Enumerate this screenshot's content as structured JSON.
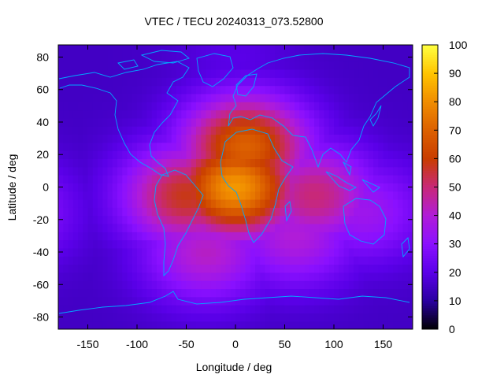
{
  "chart_data": {
    "type": "heatmap",
    "title": "VTEC / TECU 20240313_073.52800",
    "xlabel": "Longitude / deg",
    "ylabel": "Latitude / deg",
    "xlim": [
      -180,
      180
    ],
    "ylim": [
      -87.5,
      87.5
    ],
    "x_ticks": [
      -150,
      -100,
      -50,
      0,
      50,
      100,
      150
    ],
    "y_ticks": [
      80,
      60,
      40,
      20,
      0,
      -20,
      -40,
      -60,
      -80
    ],
    "colorbar": {
      "ticks": [
        0,
        10,
        20,
        30,
        40,
        50,
        60,
        70,
        80,
        90,
        100
      ],
      "range": [
        0,
        100
      ],
      "colormap": [
        "#000000",
        "#2a00a0",
        "#5a00e8",
        "#8a10ff",
        "#b01cd8",
        "#c82878",
        "#c83c00",
        "#dc6000",
        "#f08c00",
        "#ffc400",
        "#ffff40"
      ]
    },
    "background_level": 15,
    "features": [
      {
        "name": "main-crest-atlantic-africa",
        "lon": 0,
        "lat": 0,
        "vtec": 82
      },
      {
        "name": "africa-north-max",
        "lon": 10,
        "lat": 25,
        "vtec": 70
      },
      {
        "name": "south-america-band",
        "lon": -50,
        "lat": -5,
        "vtec": 58
      },
      {
        "name": "indian-ocean-band",
        "lon": 80,
        "lat": -5,
        "vtec": 50
      },
      {
        "name": "southern-atlantic",
        "lon": -30,
        "lat": -40,
        "vtec": 42
      },
      {
        "name": "southern-indian-ocean",
        "lon": 60,
        "lat": -30,
        "vtec": 40
      },
      {
        "name": "australia-north",
        "lon": 130,
        "lat": -15,
        "vtec": 35
      },
      {
        "name": "north-polar",
        "lon": 0,
        "lat": 80,
        "vtec": 20
      },
      {
        "name": "south-polar",
        "lon": -120,
        "lat": -60,
        "vtec": 14
      },
      {
        "name": "pacific-min",
        "lon": -150,
        "lat": 20,
        "vtec": 13
      }
    ],
    "coastline_color": "#00a8ff"
  }
}
